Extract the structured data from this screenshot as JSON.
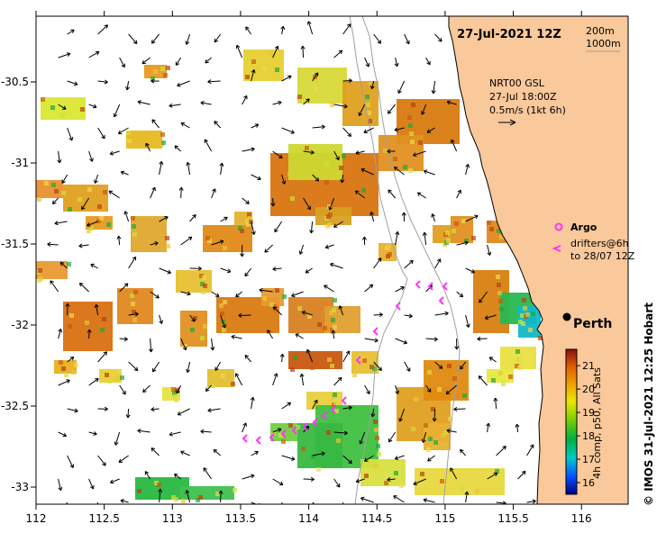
{
  "map": {
    "date_title": "27-Jul-2021 12Z",
    "depth_contours": [
      "200m",
      "1000m"
    ],
    "current_source": {
      "model": "NRT00 GSL",
      "time": "27-Jul 18:00Z",
      "scale": "0.5m/s (1kt 6h)"
    },
    "legend": {
      "argo_label": "Argo",
      "drifter_label_line1": "drifters@6h",
      "drifter_label_line2": "to 28/07 12Z",
      "argo_color": "#ff33ff",
      "drifter_color": "#ff33ff"
    },
    "city_label": "Perth",
    "credit": "© IMOS 31-Jul-2021 12:25 Hobart",
    "colorbar": {
      "label": "4h comp, p50, All Sats",
      "ticks": [
        "21",
        "20",
        "19",
        "18",
        "17",
        "16"
      ],
      "min": 15.5,
      "max": 21.7
    },
    "axes": {
      "x_ticks": [
        "112",
        "112.5",
        "113",
        "113.5",
        "114",
        "114.5",
        "115",
        "115.5",
        "116"
      ],
      "y_ticks": [
        "-30.5",
        "-31",
        "-31.5",
        "-32",
        "-32.5",
        "-33"
      ],
      "lon_range": [
        112,
        116.3
      ],
      "lat_range": [
        -33.15,
        -30.1
      ]
    },
    "colors": {
      "land": "#f9c89b",
      "ocean": "#ffffff",
      "isobath": "#a0a0a0",
      "arrow": "#000000"
    }
  }
}
